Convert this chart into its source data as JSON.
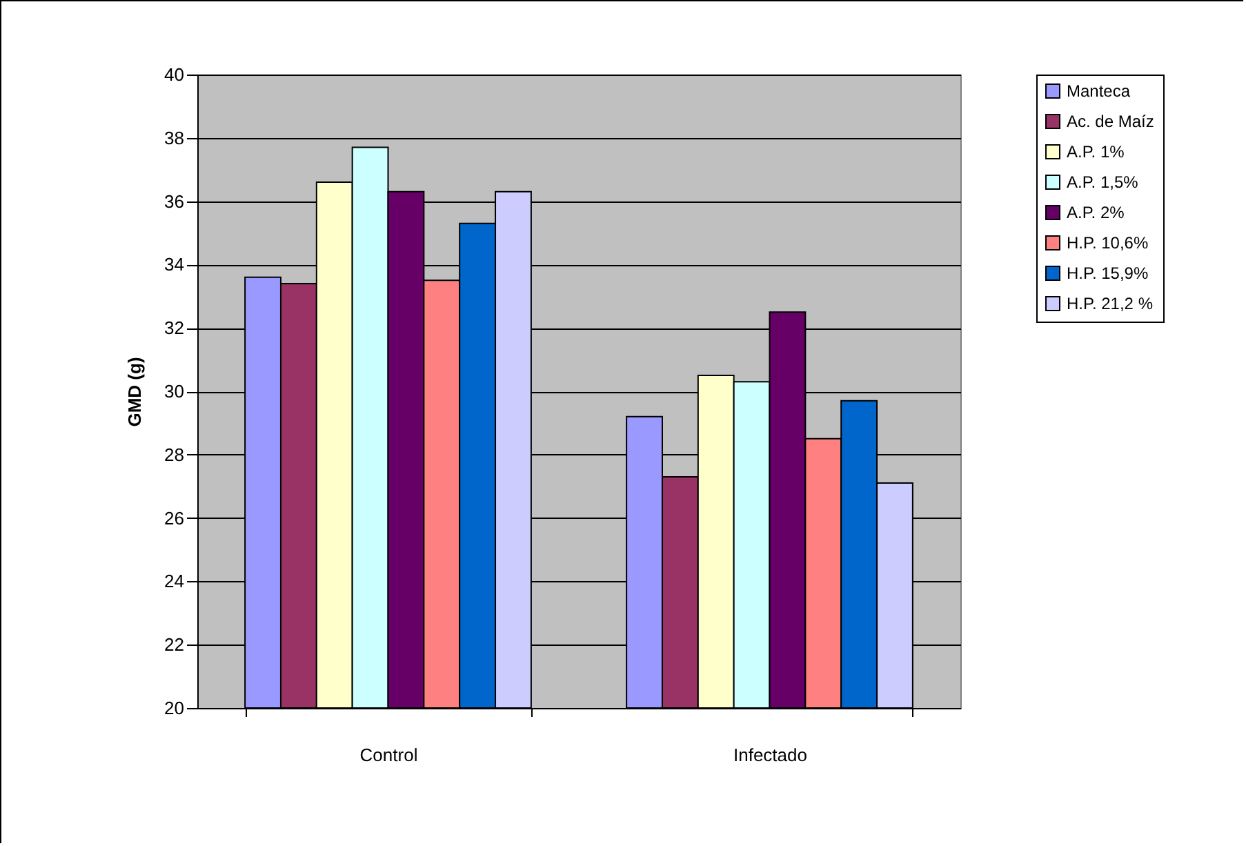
{
  "chart_data": {
    "type": "bar",
    "ylabel": "GMD (g)",
    "categories": [
      "Control",
      "Infectado"
    ],
    "series": [
      {
        "name": "Manteca",
        "color": "#9999ff",
        "values": [
          33.6,
          29.2
        ]
      },
      {
        "name": "Ac. de Maíz",
        "color": "#993366",
        "values": [
          33.4,
          27.3
        ]
      },
      {
        "name": "A.P. 1%",
        "color": "#ffffcc",
        "values": [
          36.6,
          30.5
        ]
      },
      {
        "name": "A.P. 1,5%",
        "color": "#ccffff",
        "values": [
          37.7,
          30.3
        ]
      },
      {
        "name": "A.P. 2%",
        "color": "#660066",
        "values": [
          36.3,
          32.5
        ]
      },
      {
        "name": "H.P. 10,6%",
        "color": "#ff8080",
        "values": [
          33.5,
          28.5
        ]
      },
      {
        "name": "H.P. 15,9%",
        "color": "#0066cc",
        "values": [
          35.3,
          29.7
        ]
      },
      {
        "name": "H.P. 21,2 %",
        "color": "#ccccff",
        "values": [
          36.3,
          27.1
        ]
      }
    ],
    "ylim": [
      20,
      40
    ],
    "yticks": [
      20,
      22,
      24,
      26,
      28,
      30,
      32,
      34,
      36,
      38,
      40
    ],
    "grid": "y",
    "legend": "right"
  }
}
